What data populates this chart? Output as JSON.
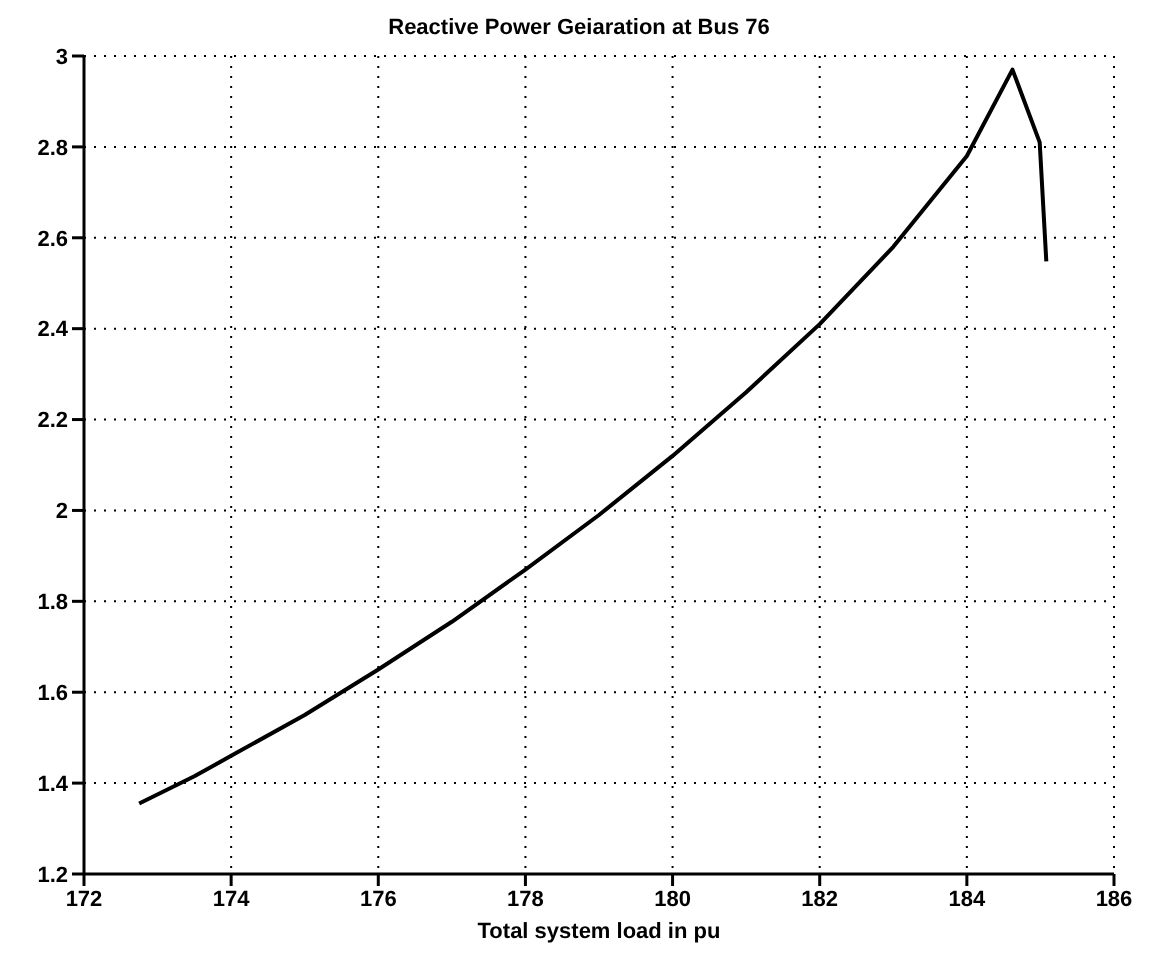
{
  "chart_data": {
    "type": "line",
    "title": "Reactive Power Geiaration at Bus 76",
    "xlabel": "Total system load in pu",
    "x": [
      172.75,
      173.5,
      174,
      175,
      176,
      177,
      178,
      179,
      180,
      181,
      182,
      183,
      184,
      184.62,
      184.99,
      185.08
    ],
    "series": [
      {
        "color": "#000000",
        "values": [
          1.355,
          1.415,
          1.46,
          1.55,
          1.65,
          1.755,
          1.87,
          1.99,
          2.12,
          2.26,
          2.41,
          2.58,
          2.78,
          2.97,
          2.81,
          2.548
        ]
      }
    ],
    "xlim": [
      172,
      186
    ],
    "xticks": [
      172,
      174,
      176,
      178,
      180,
      182,
      184,
      186
    ],
    "ylim": [
      1.2,
      3
    ],
    "yticks": [
      1.2,
      1.4,
      1.6,
      1.8,
      2,
      2.2,
      2.4,
      2.6,
      2.8,
      3
    ],
    "grid": true,
    "marker": "none",
    "line_style": "solid",
    "legend": false
  }
}
